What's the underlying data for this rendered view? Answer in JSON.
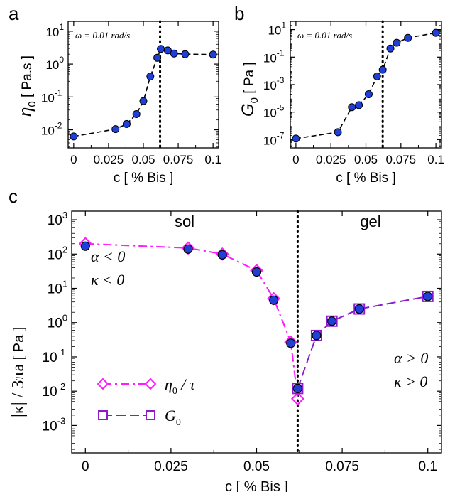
{
  "chart_data": [
    {
      "panel_label": "a",
      "type": "line",
      "log_y": true,
      "annotation": "ω = 0.01 rad/s",
      "xlabel": "c   [ % Bis ]",
      "ylabel_symbol": "η",
      "ylabel_subscript": "0",
      "ylabel_unit": "[ Pa.s ]",
      "xlim": [
        -0.004,
        0.104
      ],
      "ylim_exp": [
        -2.55,
        1.3
      ],
      "x_ticks": [
        0,
        0.025,
        0.05,
        0.075,
        0.1
      ],
      "x_tick_labels": [
        "0",
        "0.025",
        "0.05",
        "0.075",
        "0.1"
      ],
      "y_tick_exps": [
        -2,
        -1,
        0,
        1
      ],
      "y_tick_labels": [
        "10",
        "10",
        "10",
        "10"
      ],
      "y_tick_sups": [
        "-2",
        "-1",
        "0",
        "1"
      ],
      "vline_x": 0.062,
      "points": {
        "x": [
          0,
          0.03,
          0.038,
          0.045,
          0.05,
          0.055,
          0.06,
          0.0625,
          0.0675,
          0.072,
          0.08,
          0.1
        ],
        "y": [
          0.0063,
          0.0105,
          0.015,
          0.03,
          0.075,
          0.42,
          1.55,
          2.9,
          2.6,
          2.1,
          2.0,
          1.95
        ]
      },
      "line_color": "#000000",
      "marker_color": "#1f3fd6"
    },
    {
      "panel_label": "b",
      "type": "line",
      "log_y": true,
      "annotation": "ω = 0.01 rad/s",
      "xlabel": "c   [ % Bis ]",
      "ylabel_symbol": "G",
      "ylabel_subscript": "0",
      "ylabel_unit": "[ Pa ]",
      "xlim": [
        -0.004,
        0.104
      ],
      "ylim_exp": [
        -7.6,
        1.6
      ],
      "x_ticks": [
        0,
        0.025,
        0.05,
        0.075,
        0.1
      ],
      "x_tick_labels": [
        "0",
        "0.025",
        "0.05",
        "0.075",
        "0.1"
      ],
      "y_tick_exps": [
        -7,
        -5,
        -3,
        -1,
        1
      ],
      "y_tick_labels": [
        "10",
        "10",
        "10",
        "10",
        "10"
      ],
      "y_tick_sups": [
        "-7",
        "-5",
        "-3",
        "-1",
        "1"
      ],
      "vline_x": 0.062,
      "points": {
        "x": [
          0,
          0.03,
          0.04,
          0.045,
          0.052,
          0.058,
          0.062,
          0.0675,
          0.072,
          0.08,
          0.1
        ],
        "y": [
          1.2e-07,
          3.5e-07,
          2.3e-05,
          3.2e-05,
          0.0002,
          0.004,
          0.012,
          0.42,
          1.1,
          2.5,
          5.8
        ],
        "y_log": true
      },
      "line_color": "#000000",
      "marker_color": "#1f3fd6"
    },
    {
      "panel_label": "c",
      "type": "line",
      "log_y": true,
      "xlabel": "c   [ % Bis ]",
      "ylabel_main": "|κ| / 3πa",
      "ylabel_unit": "[ Pa ]",
      "xlim": [
        -0.004,
        0.104
      ],
      "ylim_exp": [
        -3.8,
        3.25
      ],
      "x_ticks": [
        0,
        0.025,
        0.05,
        0.075,
        0.1
      ],
      "x_tick_labels": [
        "0",
        "0.025",
        "0.05",
        "0.075",
        "0.1"
      ],
      "y_tick_exps": [
        -3,
        -2,
        -1,
        0,
        1,
        2,
        3
      ],
      "y_tick_labels": [
        "10",
        "10",
        "10",
        "10",
        "10",
        "10",
        "10"
      ],
      "y_tick_sups": [
        "-3",
        "-2",
        "-1",
        "0",
        "1",
        "2",
        "3"
      ],
      "vline_x": 0.062,
      "region_labels": [
        "sol",
        "gel"
      ],
      "left_note": [
        "α < 0",
        "κ < 0"
      ],
      "right_note": [
        "α > 0",
        "κ > 0"
      ],
      "series": [
        {
          "name": "η₀ / τ",
          "legend_symbol": "η",
          "legend_sub": "0",
          "legend_rest": " / τ",
          "color": "#ff1aff",
          "marker": "diamond",
          "dash": "dashdot",
          "x": [
            0,
            0.03,
            0.04,
            0.05,
            0.055,
            0.06,
            0.062
          ],
          "y": [
            200,
            150,
            100,
            33,
            5,
            0.27,
            0.006
          ]
        },
        {
          "name": "G₀",
          "legend_symbol": "G",
          "legend_sub": "0",
          "legend_rest": "",
          "color": "#8b1ccc",
          "marker": "square",
          "dash": "dashed",
          "x": [
            0.062,
            0.0675,
            0.072,
            0.08,
            0.1
          ],
          "y": [
            0.012,
            0.42,
            1.1,
            2.5,
            5.8
          ]
        }
      ],
      "overlay_points": {
        "x": [
          0,
          0.03,
          0.04,
          0.05,
          0.055,
          0.06,
          0.062,
          0.0675,
          0.072,
          0.08,
          0.1
        ],
        "y": [
          170,
          140,
          95,
          30,
          4.5,
          0.25,
          0.012,
          0.42,
          1.1,
          2.5,
          5.8
        ],
        "color": "#1f3fd6"
      }
    }
  ]
}
